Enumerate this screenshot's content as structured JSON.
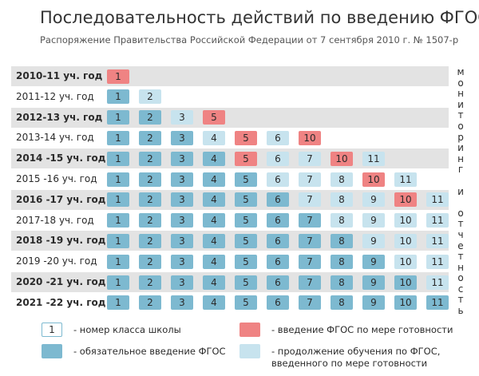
{
  "header": {
    "title": "Последовательность действий по введению ФГОС",
    "subtitle": "Распоряжение Правительства Российской Федерации от 7 сентября 2010 г. № 1507-р"
  },
  "side_text": "мониторинг и отчетность",
  "table": {
    "rows": [
      {
        "label": "2010-11 уч. год",
        "cells": [
          {
            "grade": 1,
            "color": "#ef8383"
          }
        ]
      },
      {
        "label": "2011-12 уч. год",
        "cells": [
          {
            "grade": 1,
            "color": "#7db9d0"
          },
          {
            "grade": 2,
            "color": "#c7e3ee"
          }
        ]
      },
      {
        "label": "2012-13 уч. год",
        "cells": [
          {
            "grade": 1,
            "color": "#7db9d0"
          },
          {
            "grade": 2,
            "color": "#7db9d0"
          },
          {
            "grade": 3,
            "color": "#c7e3ee"
          },
          {
            "grade": 5,
            "color": "#ef8383"
          }
        ]
      },
      {
        "label": "2013-14 уч. год",
        "cells": [
          {
            "grade": 1,
            "color": "#7db9d0"
          },
          {
            "grade": 2,
            "color": "#7db9d0"
          },
          {
            "grade": 3,
            "color": "#7db9d0"
          },
          {
            "grade": 4,
            "color": "#c7e3ee"
          },
          {
            "grade": 5,
            "color": "#ef8383"
          },
          {
            "grade": 6,
            "color": "#c7e3ee"
          },
          {
            "grade": 10,
            "color": "#ef8383"
          }
        ]
      },
      {
        "label": "2014 -15 уч. год",
        "cells": [
          {
            "grade": 1,
            "color": "#7db9d0"
          },
          {
            "grade": 2,
            "color": "#7db9d0"
          },
          {
            "grade": 3,
            "color": "#7db9d0"
          },
          {
            "grade": 4,
            "color": "#7db9d0"
          },
          {
            "grade": 5,
            "color": "#ef8383"
          },
          {
            "grade": 6,
            "color": "#c7e3ee"
          },
          {
            "grade": 7,
            "color": "#c7e3ee"
          },
          {
            "grade": 10,
            "color": "#ef8383"
          },
          {
            "grade": 11,
            "color": "#c7e3ee"
          }
        ]
      },
      {
        "label": "2015 -16 уч. год",
        "cells": [
          {
            "grade": 1,
            "color": "#7db9d0"
          },
          {
            "grade": 2,
            "color": "#7db9d0"
          },
          {
            "grade": 3,
            "color": "#7db9d0"
          },
          {
            "grade": 4,
            "color": "#7db9d0"
          },
          {
            "grade": 5,
            "color": "#7db9d0"
          },
          {
            "grade": 6,
            "color": "#c7e3ee"
          },
          {
            "grade": 7,
            "color": "#c7e3ee"
          },
          {
            "grade": 8,
            "color": "#c7e3ee"
          },
          {
            "grade": 10,
            "color": "#ef8383"
          },
          {
            "grade": 11,
            "color": "#c7e3ee"
          }
        ]
      },
      {
        "label": "2016 -17 уч. год",
        "cells": [
          {
            "grade": 1,
            "color": "#7db9d0"
          },
          {
            "grade": 2,
            "color": "#7db9d0"
          },
          {
            "grade": 3,
            "color": "#7db9d0"
          },
          {
            "grade": 4,
            "color": "#7db9d0"
          },
          {
            "grade": 5,
            "color": "#7db9d0"
          },
          {
            "grade": 6,
            "color": "#7db9d0"
          },
          {
            "grade": 7,
            "color": "#c7e3ee"
          },
          {
            "grade": 8,
            "color": "#c7e3ee"
          },
          {
            "grade": 9,
            "color": "#c7e3ee"
          },
          {
            "grade": 10,
            "color": "#ef8383"
          },
          {
            "grade": 11,
            "color": "#c7e3ee"
          }
        ]
      },
      {
        "label": "2017-18 уч. год",
        "cells": [
          {
            "grade": 1,
            "color": "#7db9d0"
          },
          {
            "grade": 2,
            "color": "#7db9d0"
          },
          {
            "grade": 3,
            "color": "#7db9d0"
          },
          {
            "grade": 4,
            "color": "#7db9d0"
          },
          {
            "grade": 5,
            "color": "#7db9d0"
          },
          {
            "grade": 6,
            "color": "#7db9d0"
          },
          {
            "grade": 7,
            "color": "#7db9d0"
          },
          {
            "grade": 8,
            "color": "#c7e3ee"
          },
          {
            "grade": 9,
            "color": "#c7e3ee"
          },
          {
            "grade": 10,
            "color": "#c7e3ee"
          },
          {
            "grade": 11,
            "color": "#c7e3ee"
          }
        ]
      },
      {
        "label": "2018 -19 уч. год",
        "cells": [
          {
            "grade": 1,
            "color": "#7db9d0"
          },
          {
            "grade": 2,
            "color": "#7db9d0"
          },
          {
            "grade": 3,
            "color": "#7db9d0"
          },
          {
            "grade": 4,
            "color": "#7db9d0"
          },
          {
            "grade": 5,
            "color": "#7db9d0"
          },
          {
            "grade": 6,
            "color": "#7db9d0"
          },
          {
            "grade": 7,
            "color": "#7db9d0"
          },
          {
            "grade": 8,
            "color": "#7db9d0"
          },
          {
            "grade": 9,
            "color": "#c7e3ee"
          },
          {
            "grade": 10,
            "color": "#c7e3ee"
          },
          {
            "grade": 11,
            "color": "#c7e3ee"
          }
        ]
      },
      {
        "label": "2019 -20 уч. год",
        "cells": [
          {
            "grade": 1,
            "color": "#7db9d0"
          },
          {
            "grade": 2,
            "color": "#7db9d0"
          },
          {
            "grade": 3,
            "color": "#7db9d0"
          },
          {
            "grade": 4,
            "color": "#7db9d0"
          },
          {
            "grade": 5,
            "color": "#7db9d0"
          },
          {
            "grade": 6,
            "color": "#7db9d0"
          },
          {
            "grade": 7,
            "color": "#7db9d0"
          },
          {
            "grade": 8,
            "color": "#7db9d0"
          },
          {
            "grade": 9,
            "color": "#7db9d0"
          },
          {
            "grade": 10,
            "color": "#c7e3ee"
          },
          {
            "grade": 11,
            "color": "#c7e3ee"
          }
        ]
      },
      {
        "label": "2020 -21 уч. год",
        "cells": [
          {
            "grade": 1,
            "color": "#7db9d0"
          },
          {
            "grade": 2,
            "color": "#7db9d0"
          },
          {
            "grade": 3,
            "color": "#7db9d0"
          },
          {
            "grade": 4,
            "color": "#7db9d0"
          },
          {
            "grade": 5,
            "color": "#7db9d0"
          },
          {
            "grade": 6,
            "color": "#7db9d0"
          },
          {
            "grade": 7,
            "color": "#7db9d0"
          },
          {
            "grade": 8,
            "color": "#7db9d0"
          },
          {
            "grade": 9,
            "color": "#7db9d0"
          },
          {
            "grade": 10,
            "color": "#7db9d0"
          },
          {
            "grade": 11,
            "color": "#c7e3ee"
          }
        ]
      },
      {
        "label": "2021 -22 уч. год",
        "cells": [
          {
            "grade": 1,
            "color": "#7db9d0"
          },
          {
            "grade": 2,
            "color": "#7db9d0"
          },
          {
            "grade": 3,
            "color": "#7db9d0"
          },
          {
            "grade": 4,
            "color": "#7db9d0"
          },
          {
            "grade": 5,
            "color": "#7db9d0"
          },
          {
            "grade": 6,
            "color": "#7db9d0"
          },
          {
            "grade": 7,
            "color": "#7db9d0"
          },
          {
            "grade": 8,
            "color": "#7db9d0"
          },
          {
            "grade": 9,
            "color": "#7db9d0"
          },
          {
            "grade": 10,
            "color": "#7db9d0"
          },
          {
            "grade": 11,
            "color": "#7db9d0"
          }
        ]
      }
    ]
  },
  "legend": [
    {
      "sample": "1",
      "color": "#ffffff",
      "lines": [
        "- номер класса школы"
      ]
    },
    {
      "color": "#7db9d0",
      "lines": [
        "- обязательное введение ФГОС"
      ]
    },
    {
      "color": "#ef8383",
      "lines": [
        "- введение ФГОС по мере готовности"
      ]
    },
    {
      "color": "#c7e3ee",
      "lines": [
        "- продолжение обучения по ФГОС,",
        "введенного по мере готовности"
      ]
    }
  ]
}
